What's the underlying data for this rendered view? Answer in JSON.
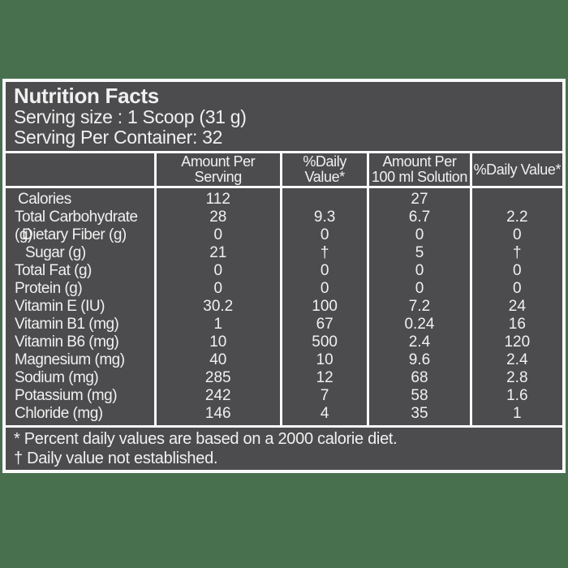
{
  "colors": {
    "background": "#48704F",
    "label_background": "#4C4C4E",
    "grid_lines": "#FAFAFA",
    "text": "#F0F0F0"
  },
  "header": {
    "title": "Nutrition Facts",
    "serving_size": "Serving size : 1 Scoop (31 g)",
    "servings_per_container": "Serving Per Container: 32"
  },
  "table": {
    "header": {
      "corner": "",
      "amount_per_serving": "Amount Per Serving",
      "pct_daily_value": "%Daily Value*",
      "amount_per_100ml_line1": "Amount Per",
      "amount_per_100ml_line2": "100 ml Solution",
      "pct_daily_value_100ml": "%Daily Value*"
    },
    "rows": [
      {
        "label": "Calories",
        "indent": 1,
        "amount_per_serving": "112",
        "pct_daily_value": "",
        "amount_per_100ml": "27",
        "pct_daily_value_100ml": ""
      },
      {
        "label": "Total Carbohydrate (g)",
        "indent": 0,
        "amount_per_serving": "28",
        "pct_daily_value": "9.3",
        "amount_per_100ml": "6.7",
        "pct_daily_value_100ml": "2.2"
      },
      {
        "label": "Dietary Fiber (g)",
        "indent": 2,
        "amount_per_serving": "0",
        "pct_daily_value": "0",
        "amount_per_100ml": "0",
        "pct_daily_value_100ml": "0"
      },
      {
        "label": "Sugar (g)",
        "indent": 3,
        "amount_per_serving": "21",
        "pct_daily_value": "†",
        "amount_per_100ml": "5",
        "pct_daily_value_100ml": "†"
      },
      {
        "label": "Total Fat (g)",
        "indent": 0,
        "amount_per_serving": "0",
        "pct_daily_value": "0",
        "amount_per_100ml": "0",
        "pct_daily_value_100ml": "0"
      },
      {
        "label": "Protein (g)",
        "indent": 0,
        "amount_per_serving": "0",
        "pct_daily_value": "0",
        "amount_per_100ml": "0",
        "pct_daily_value_100ml": "0"
      },
      {
        "label": "Vitamin E (IU)",
        "indent": 0,
        "amount_per_serving": "30.2",
        "pct_daily_value": "100",
        "amount_per_100ml": "7.2",
        "pct_daily_value_100ml": "24"
      },
      {
        "label": "Vitamin B1 (mg)",
        "indent": 0,
        "amount_per_serving": "1",
        "pct_daily_value": "67",
        "amount_per_100ml": "0.24",
        "pct_daily_value_100ml": "16"
      },
      {
        "label": "Vitamin B6 (mg)",
        "indent": 0,
        "amount_per_serving": "10",
        "pct_daily_value": "500",
        "amount_per_100ml": "2.4",
        "pct_daily_value_100ml": "120"
      },
      {
        "label": "Magnesium (mg)",
        "indent": 0,
        "amount_per_serving": "40",
        "pct_daily_value": "10",
        "amount_per_100ml": "9.6",
        "pct_daily_value_100ml": "2.4"
      },
      {
        "label": "Sodium (mg)",
        "indent": 0,
        "amount_per_serving": "285",
        "pct_daily_value": "12",
        "amount_per_100ml": "68",
        "pct_daily_value_100ml": "2.8"
      },
      {
        "label": "Potassium (mg)",
        "indent": 0,
        "amount_per_serving": "242",
        "pct_daily_value": "7",
        "amount_per_100ml": "58",
        "pct_daily_value_100ml": "1.6"
      },
      {
        "label": "Chloride (mg)",
        "indent": 0,
        "amount_per_serving": "146",
        "pct_daily_value": "4",
        "amount_per_100ml": "35",
        "pct_daily_value_100ml": "1"
      }
    ]
  },
  "footnotes": {
    "percent_note": "* Percent daily values are based on a 2000 calorie diet.",
    "dagger_note": "† Daily value not established."
  }
}
